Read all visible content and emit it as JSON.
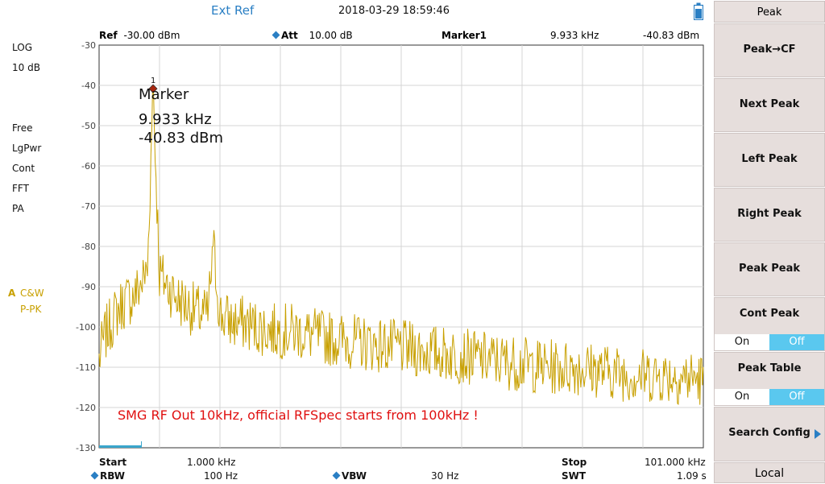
{
  "status": {
    "ext_ref": "Ext Ref",
    "datetime": "2018-03-29   18:59:46"
  },
  "info_row": {
    "ref_label": "Ref",
    "ref_value": "-30.00 dBm",
    "att_label": "Att",
    "att_value": "10.00 dB",
    "marker_label": "Marker1",
    "marker_freq": "9.933 kHz",
    "marker_amp": "-40.83 dBm"
  },
  "left_panel": {
    "scale_type": "LOG",
    "scale_div": "10 dB",
    "items": [
      "Free",
      "LgPwr",
      "Cont",
      "FFT",
      "PA"
    ],
    "trace_letter": "A",
    "trace_mode": "C&W",
    "trace_detector": "P-PK"
  },
  "marker_box": {
    "title": "Marker",
    "freq": "9.933 kHz",
    "amp": "-40.83 dBm",
    "number": "1"
  },
  "annotation": "SMG RF Out 10kHz, official RFSpec starts from 100kHz !",
  "bottom": {
    "start_label": "Start",
    "start_value": "1.000 kHz",
    "stop_label": "Stop",
    "stop_value": "101.000 kHz",
    "rbw_label": "RBW",
    "rbw_value": "100 Hz",
    "vbw_label": "VBW",
    "vbw_value": "30 Hz",
    "swt_label": "SWT",
    "swt_value": "1.09 s"
  },
  "softkeys": {
    "title": "Peak",
    "peak_cf": "Peak→CF",
    "next_peak": "Next Peak",
    "left_peak": "Left Peak",
    "right_peak": "Right Peak",
    "peak_peak": "Peak Peak",
    "cont_peak": "Cont Peak",
    "cont_peak_on": "On",
    "cont_peak_off": "Off",
    "peak_table": "Peak Table",
    "peak_table_on": "On",
    "peak_table_off": "Off",
    "search_config": "Search Config",
    "local": "Local"
  },
  "colors": {
    "trace": "#c8a000",
    "accent": "#2a7fc4",
    "annotation": "#e01010",
    "toggle_active": "#5ac8ef"
  },
  "chart_data": {
    "type": "line",
    "xlabel": "",
    "ylabel": "",
    "x_unit": "kHz",
    "y_unit": "dBm",
    "xlim": [
      1.0,
      101.0
    ],
    "ylim": [
      -130,
      -30
    ],
    "y_ticks": [
      -30,
      -40,
      -50,
      -60,
      -70,
      -80,
      -90,
      -100,
      -110,
      -120,
      -130
    ],
    "grid": true,
    "series": [
      {
        "x": [
          1,
          2,
          3,
          4,
          5,
          6,
          7,
          8,
          9,
          9.933,
          11,
          12,
          13,
          14,
          15,
          16,
          17,
          18,
          19,
          19.9,
          21,
          22,
          23,
          25,
          27,
          30,
          33,
          36,
          40,
          45,
          50,
          55,
          60,
          65,
          70,
          75,
          80,
          85,
          90,
          95,
          101
        ],
        "y": [
          -108,
          -102,
          -99,
          -96,
          -94,
          -93,
          -92,
          -89,
          -86,
          -40.83,
          -87,
          -89,
          -91,
          -93,
          -94,
          -95,
          -96,
          -97,
          -97,
          -80,
          -97,
          -98,
          -99,
          -99,
          -100,
          -101,
          -101,
          -102,
          -103,
          -104,
          -105,
          -106,
          -107,
          -108,
          -109,
          -110,
          -110,
          -111,
          -112,
          -112,
          -113
        ]
      }
    ]
  }
}
